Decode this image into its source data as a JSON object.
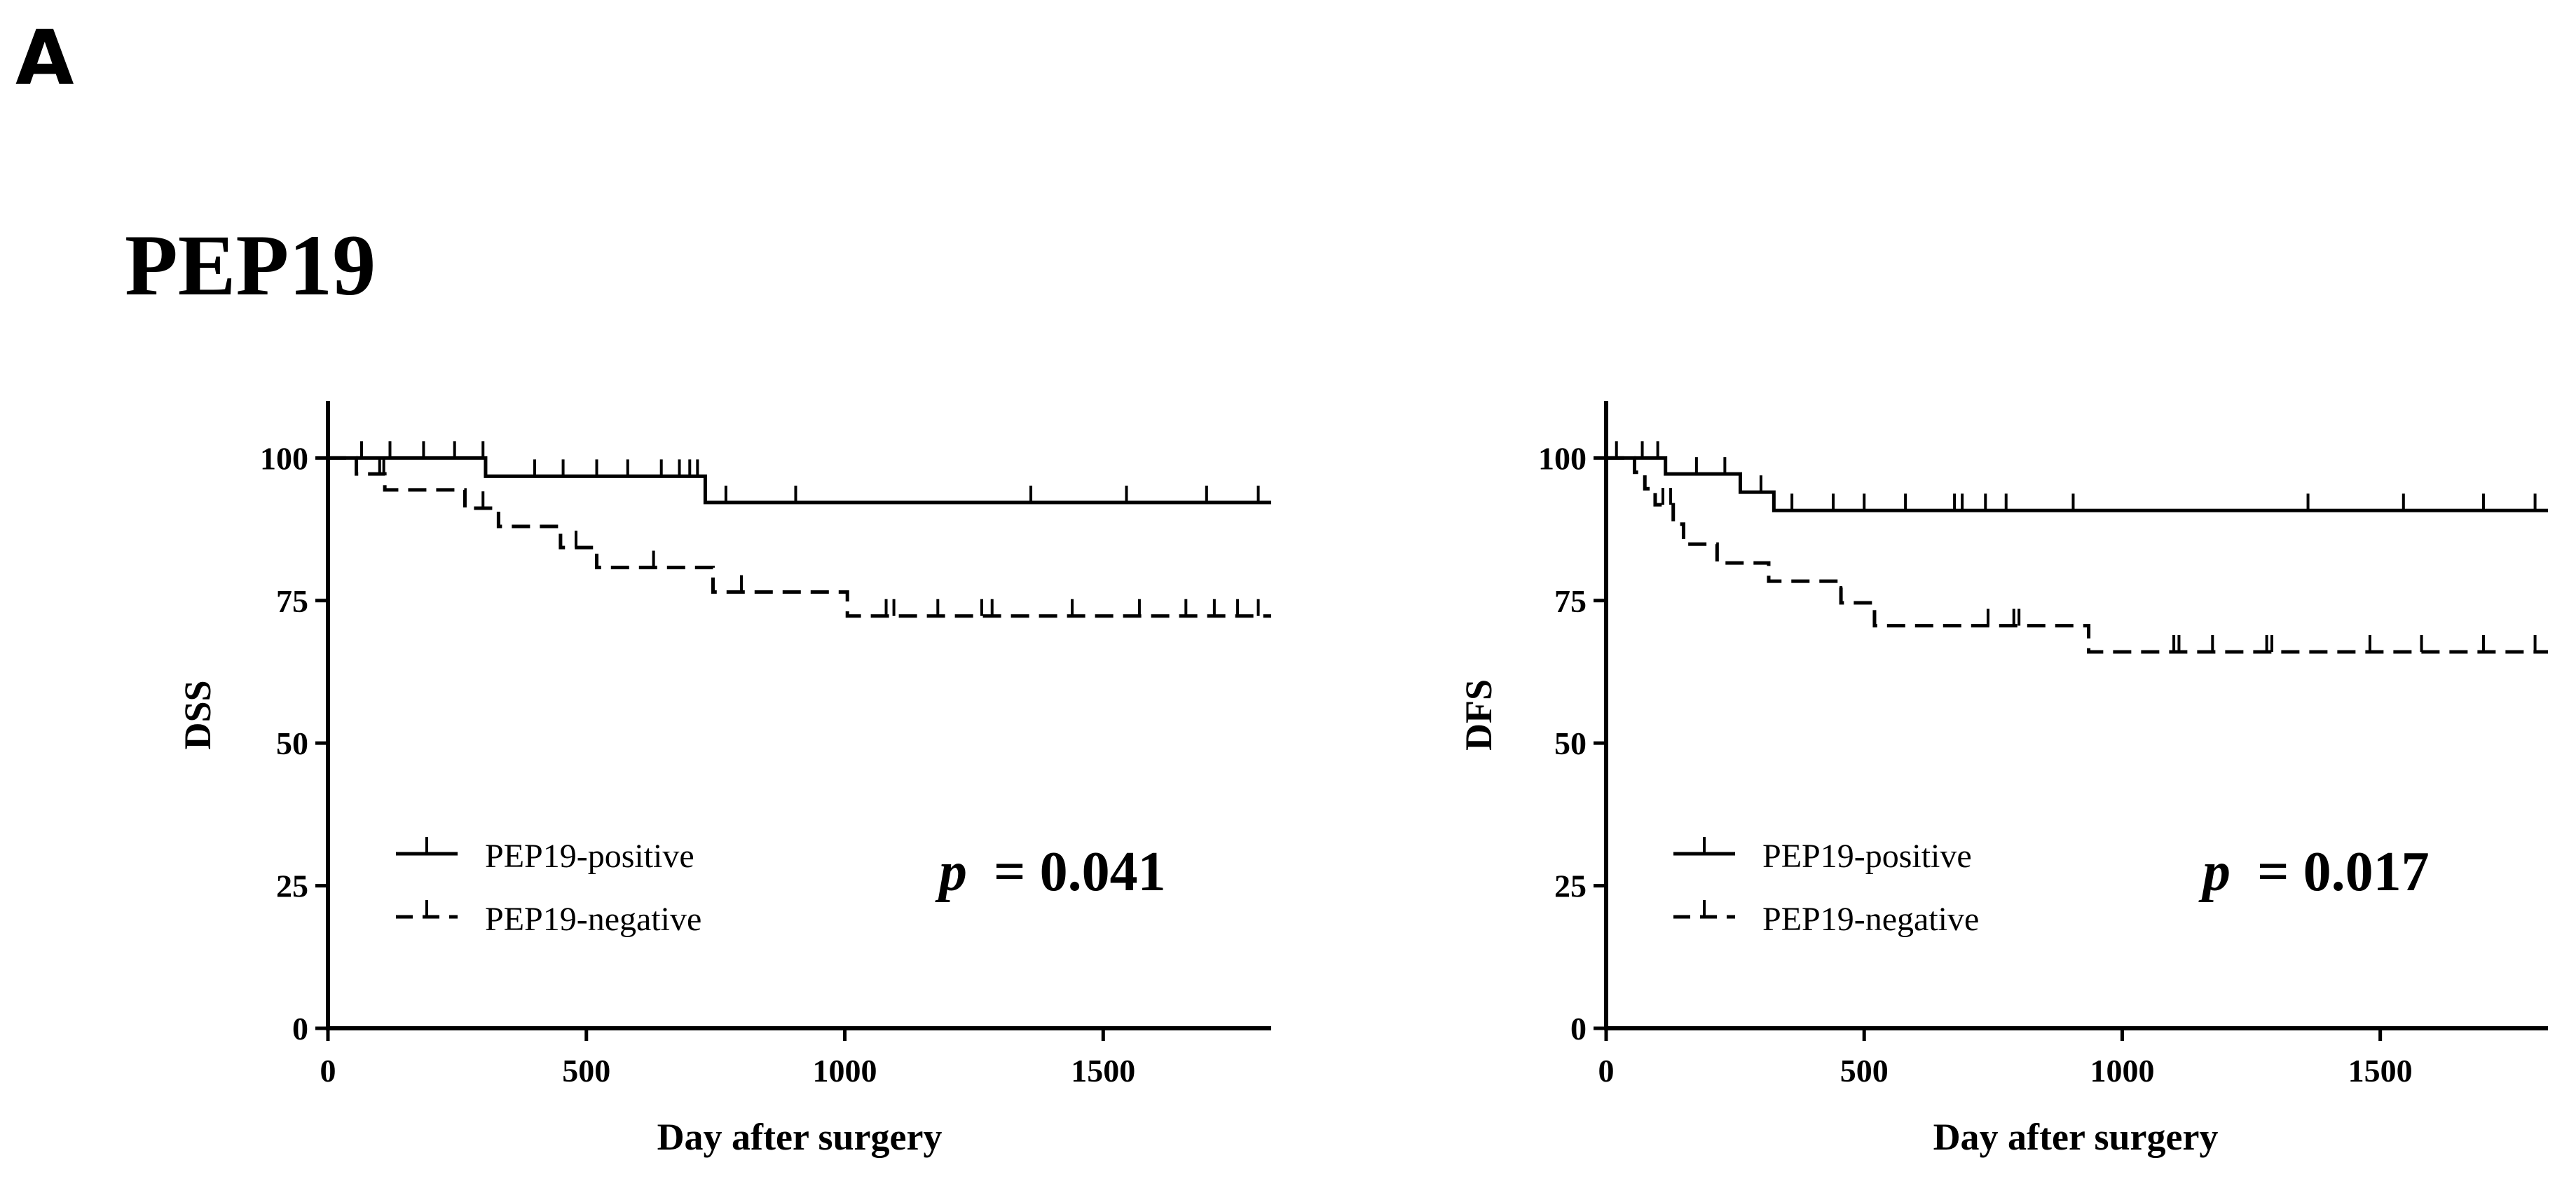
{
  "panel_label": "A",
  "figure_title": "PEP19",
  "chart_data": [
    {
      "type": "line",
      "subtype": "kaplan-meier",
      "ylabel": "DSS",
      "xlabel": "Day after surgery",
      "xlim": [
        0,
        1825
      ],
      "ylim": [
        0,
        110
      ],
      "xticks": [
        0,
        500,
        1000,
        1500
      ],
      "yticks": [
        0,
        25,
        50,
        75,
        100
      ],
      "p_label": "p",
      "p_text": "= 0.041",
      "legend_position": "lower-left",
      "series": [
        {
          "name": "PEP19-positive",
          "style": "solid",
          "steps": [
            [
              0,
              100
            ],
            [
              305,
              96.8
            ],
            [
              730,
              92.2
            ],
            [
              1825,
              92.2
            ]
          ],
          "censors": [
            65,
            120,
            185,
            245,
            300,
            400,
            455,
            520,
            580,
            645,
            680,
            700,
            715,
            770,
            905,
            1360,
            1545,
            1700,
            1800
          ]
        },
        {
          "name": "PEP19-negative",
          "style": "dashed",
          "steps": [
            [
              0,
              100
            ],
            [
              55,
              97.2
            ],
            [
              110,
              94.4
            ],
            [
              265,
              91.2
            ],
            [
              330,
              88.0
            ],
            [
              450,
              84.3
            ],
            [
              520,
              80.8
            ],
            [
              745,
              76.5
            ],
            [
              1005,
              72.3
            ],
            [
              1825,
              72.3
            ]
          ],
          "censors": [
            100,
            108,
            300,
            480,
            630,
            800,
            1080,
            1095,
            1180,
            1265,
            1285,
            1440,
            1570,
            1660,
            1715,
            1760,
            1800
          ]
        }
      ]
    },
    {
      "type": "line",
      "subtype": "kaplan-meier",
      "ylabel": "DFS",
      "xlabel": "Day after surgery",
      "xlim": [
        0,
        1825
      ],
      "ylim": [
        0,
        110
      ],
      "xticks": [
        0,
        500,
        1000,
        1500
      ],
      "yticks": [
        0,
        25,
        50,
        75,
        100
      ],
      "p_label": "p",
      "p_text": "= 0.017",
      "legend_position": "lower-left",
      "series": [
        {
          "name": "PEP19-positive",
          "style": "solid",
          "steps": [
            [
              0,
              100
            ],
            [
              115,
              97.2
            ],
            [
              260,
              94.0
            ],
            [
              325,
              90.8
            ],
            [
              1825,
              90.8
            ]
          ],
          "censors": [
            20,
            70,
            100,
            175,
            230,
            300,
            360,
            440,
            500,
            580,
            675,
            690,
            735,
            775,
            905,
            1360,
            1545,
            1700,
            1800
          ]
        },
        {
          "name": "PEP19-negative",
          "style": "dashed",
          "steps": [
            [
              0,
              100
            ],
            [
              55,
              97.5
            ],
            [
              75,
              94.6
            ],
            [
              95,
              91.8
            ],
            [
              130,
              88.4
            ],
            [
              150,
              84.9
            ],
            [
              215,
              81.6
            ],
            [
              315,
              78.4
            ],
            [
              455,
              74.6
            ],
            [
              520,
              70.6
            ],
            [
              935,
              66.0
            ],
            [
              1825,
              66.0
            ]
          ],
          "censors": [
            110,
            125,
            455,
            740,
            790,
            800,
            1100,
            1110,
            1175,
            1280,
            1290,
            1480,
            1580,
            1700,
            1800
          ]
        }
      ]
    }
  ]
}
